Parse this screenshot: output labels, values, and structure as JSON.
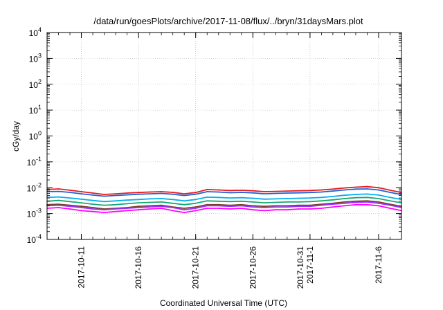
{
  "chart_data": {
    "type": "line",
    "title": "/data/run/goesPlots/archive/2017-11-08/flux/../bryn/31daysMars.plot",
    "xlabel": "Coordinated Universal Time (UTC)",
    "ylabel": "cGy/day",
    "yscale": "log",
    "ylim": [
      0.0001,
      10000
    ],
    "xlim": [
      "2017-10-08",
      "2017-11-08"
    ],
    "grid": true,
    "x_ticks": [
      {
        "date": "2017-10-11",
        "lines": [
          "2017-10-11"
        ]
      },
      {
        "date": "2017-10-16",
        "lines": [
          "2017-10-16"
        ]
      },
      {
        "date": "2017-10-21",
        "lines": [
          "2017-10-21"
        ]
      },
      {
        "date": "2017-10-26",
        "lines": [
          "2017-10-26"
        ]
      },
      {
        "date": "2017-10-31",
        "lines": [
          "2017-10-31",
          "2017-11-1"
        ]
      },
      {
        "date": "2017-11-06",
        "lines": [
          "2017-11-6"
        ]
      }
    ],
    "y_ticks": [
      {
        "value": 0.0001,
        "base": "10",
        "exp": "-4"
      },
      {
        "value": 0.001,
        "base": "10",
        "exp": "-3"
      },
      {
        "value": 0.01,
        "base": "10",
        "exp": "-2"
      },
      {
        "value": 0.1,
        "base": "10",
        "exp": "-1"
      },
      {
        "value": 1,
        "base": "10",
        "exp": "0"
      },
      {
        "value": 10,
        "base": "10",
        "exp": "1"
      },
      {
        "value": 100,
        "base": "10",
        "exp": "2"
      },
      {
        "value": 1000,
        "base": "10",
        "exp": "3"
      },
      {
        "value": 10000,
        "base": "10",
        "exp": "4"
      }
    ],
    "series": [
      {
        "color": "#e41a1c",
        "points": [
          [
            "2017-10-08",
            0.0085
          ],
          [
            "2017-10-09",
            0.009
          ],
          [
            "2017-10-10",
            0.008
          ],
          [
            "2017-10-11",
            0.007
          ],
          [
            "2017-10-12",
            0.0062
          ],
          [
            "2017-10-13",
            0.0055
          ],
          [
            "2017-10-14",
            0.0058
          ],
          [
            "2017-10-15",
            0.0062
          ],
          [
            "2017-10-16",
            0.0065
          ],
          [
            "2017-10-17",
            0.0068
          ],
          [
            "2017-10-18",
            0.007
          ],
          [
            "2017-10-19",
            0.0066
          ],
          [
            "2017-10-20",
            0.0058
          ],
          [
            "2017-10-21",
            0.0065
          ],
          [
            "2017-10-22",
            0.0085
          ],
          [
            "2017-10-23",
            0.0082
          ],
          [
            "2017-10-24",
            0.0078
          ],
          [
            "2017-10-25",
            0.008
          ],
          [
            "2017-10-26",
            0.0076
          ],
          [
            "2017-10-27",
            0.007
          ],
          [
            "2017-10-28",
            0.0072
          ],
          [
            "2017-10-29",
            0.0074
          ],
          [
            "2017-10-30",
            0.0076
          ],
          [
            "2017-10-31",
            0.0078
          ],
          [
            "2017-11-01",
            0.0082
          ],
          [
            "2017-11-02",
            0.0088
          ],
          [
            "2017-11-03",
            0.0098
          ],
          [
            "2017-11-04",
            0.0105
          ],
          [
            "2017-11-05",
            0.011
          ],
          [
            "2017-11-06",
            0.01
          ],
          [
            "2017-11-07",
            0.008
          ],
          [
            "2017-11-08",
            0.0065
          ]
        ]
      },
      {
        "color": "#1f5fd6",
        "points": [
          [
            "2017-10-08",
            0.007
          ],
          [
            "2017-10-09",
            0.0072
          ],
          [
            "2017-10-10",
            0.0066
          ],
          [
            "2017-10-11",
            0.0058
          ],
          [
            "2017-10-12",
            0.0052
          ],
          [
            "2017-10-13",
            0.0047
          ],
          [
            "2017-10-14",
            0.005
          ],
          [
            "2017-10-15",
            0.0053
          ],
          [
            "2017-10-16",
            0.0056
          ],
          [
            "2017-10-17",
            0.0058
          ],
          [
            "2017-10-18",
            0.006
          ],
          [
            "2017-10-19",
            0.0056
          ],
          [
            "2017-10-20",
            0.005
          ],
          [
            "2017-10-21",
            0.0056
          ],
          [
            "2017-10-22",
            0.007
          ],
          [
            "2017-10-23",
            0.0068
          ],
          [
            "2017-10-24",
            0.0064
          ],
          [
            "2017-10-25",
            0.0066
          ],
          [
            "2017-10-26",
            0.0063
          ],
          [
            "2017-10-27",
            0.0058
          ],
          [
            "2017-10-28",
            0.006
          ],
          [
            "2017-10-29",
            0.0062
          ],
          [
            "2017-10-30",
            0.0063
          ],
          [
            "2017-10-31",
            0.0065
          ],
          [
            "2017-11-01",
            0.0068
          ],
          [
            "2017-11-02",
            0.0074
          ],
          [
            "2017-11-03",
            0.0082
          ],
          [
            "2017-11-04",
            0.0088
          ],
          [
            "2017-11-05",
            0.009
          ],
          [
            "2017-11-06",
            0.0082
          ],
          [
            "2017-11-07",
            0.0066
          ],
          [
            "2017-11-08",
            0.0054
          ]
        ]
      },
      {
        "color": "#00b0f0",
        "points": [
          [
            "2017-10-08",
            0.0042
          ],
          [
            "2017-10-09",
            0.0044
          ],
          [
            "2017-10-10",
            0.004
          ],
          [
            "2017-10-11",
            0.0036
          ],
          [
            "2017-10-12",
            0.0032
          ],
          [
            "2017-10-13",
            0.0029
          ],
          [
            "2017-10-14",
            0.0031
          ],
          [
            "2017-10-15",
            0.0033
          ],
          [
            "2017-10-16",
            0.0035
          ],
          [
            "2017-10-17",
            0.0037
          ],
          [
            "2017-10-18",
            0.0038
          ],
          [
            "2017-10-19",
            0.0035
          ],
          [
            "2017-10-20",
            0.0031
          ],
          [
            "2017-10-21",
            0.0035
          ],
          [
            "2017-10-22",
            0.0043
          ],
          [
            "2017-10-23",
            0.0042
          ],
          [
            "2017-10-24",
            0.004
          ],
          [
            "2017-10-25",
            0.0041
          ],
          [
            "2017-10-26",
            0.0039
          ],
          [
            "2017-10-27",
            0.0036
          ],
          [
            "2017-10-28",
            0.0037
          ],
          [
            "2017-10-29",
            0.0038
          ],
          [
            "2017-10-30",
            0.0039
          ],
          [
            "2017-10-31",
            0.004
          ],
          [
            "2017-11-01",
            0.0042
          ],
          [
            "2017-11-02",
            0.0046
          ],
          [
            "2017-11-03",
            0.0051
          ],
          [
            "2017-11-04",
            0.0055
          ],
          [
            "2017-11-05",
            0.0057
          ],
          [
            "2017-11-06",
            0.0052
          ],
          [
            "2017-11-07",
            0.0042
          ],
          [
            "2017-11-08",
            0.0035
          ]
        ]
      },
      {
        "color": "#17a673",
        "points": [
          [
            "2017-10-08",
            0.003
          ],
          [
            "2017-10-09",
            0.0032
          ],
          [
            "2017-10-10",
            0.0029
          ],
          [
            "2017-10-11",
            0.0026
          ],
          [
            "2017-10-12",
            0.0023
          ],
          [
            "2017-10-13",
            0.0021
          ],
          [
            "2017-10-14",
            0.0022
          ],
          [
            "2017-10-15",
            0.0024
          ],
          [
            "2017-10-16",
            0.0026
          ],
          [
            "2017-10-17",
            0.0027
          ],
          [
            "2017-10-18",
            0.0028
          ],
          [
            "2017-10-19",
            0.0025
          ],
          [
            "2017-10-20",
            0.0022
          ],
          [
            "2017-10-21",
            0.0025
          ],
          [
            "2017-10-22",
            0.0031
          ],
          [
            "2017-10-23",
            0.003
          ],
          [
            "2017-10-24",
            0.0029
          ],
          [
            "2017-10-25",
            0.003
          ],
          [
            "2017-10-26",
            0.0028
          ],
          [
            "2017-10-27",
            0.0026
          ],
          [
            "2017-10-28",
            0.0027
          ],
          [
            "2017-10-29",
            0.0028
          ],
          [
            "2017-10-30",
            0.0028
          ],
          [
            "2017-10-31",
            0.0029
          ],
          [
            "2017-11-01",
            0.0031
          ],
          [
            "2017-11-02",
            0.0034
          ],
          [
            "2017-11-03",
            0.0038
          ],
          [
            "2017-11-04",
            0.0041
          ],
          [
            "2017-11-05",
            0.0042
          ],
          [
            "2017-11-06",
            0.0038
          ],
          [
            "2017-11-07",
            0.0031
          ],
          [
            "2017-11-08",
            0.0026
          ]
        ]
      },
      {
        "color": "#7a3e2c",
        "points": [
          [
            "2017-10-08",
            0.0022
          ],
          [
            "2017-10-09",
            0.0023
          ],
          [
            "2017-10-10",
            0.0021
          ],
          [
            "2017-10-11",
            0.0019
          ],
          [
            "2017-10-12",
            0.0017
          ],
          [
            "2017-10-13",
            0.0015
          ],
          [
            "2017-10-14",
            0.0016
          ],
          [
            "2017-10-15",
            0.0017
          ],
          [
            "2017-10-16",
            0.0019
          ],
          [
            "2017-10-17",
            0.002
          ],
          [
            "2017-10-18",
            0.0021
          ],
          [
            "2017-10-19",
            0.0018
          ],
          [
            "2017-10-20",
            0.0016
          ],
          [
            "2017-10-21",
            0.0018
          ],
          [
            "2017-10-22",
            0.0022
          ],
          [
            "2017-10-23",
            0.0022
          ],
          [
            "2017-10-24",
            0.0021
          ],
          [
            "2017-10-25",
            0.0022
          ],
          [
            "2017-10-26",
            0.002
          ],
          [
            "2017-10-27",
            0.0019
          ],
          [
            "2017-10-28",
            0.002
          ],
          [
            "2017-10-29",
            0.002
          ],
          [
            "2017-10-30",
            0.0021
          ],
          [
            "2017-10-31",
            0.0021
          ],
          [
            "2017-11-01",
            0.0023
          ],
          [
            "2017-11-02",
            0.0025
          ],
          [
            "2017-11-03",
            0.0028
          ],
          [
            "2017-11-04",
            0.003
          ],
          [
            "2017-11-05",
            0.0031
          ],
          [
            "2017-11-06",
            0.0028
          ],
          [
            "2017-11-07",
            0.0023
          ],
          [
            "2017-11-08",
            0.0019
          ]
        ]
      },
      {
        "color": "#9b30ff",
        "points": [
          [
            "2017-10-08",
            0.002
          ],
          [
            "2017-10-09",
            0.0021
          ],
          [
            "2017-10-10",
            0.0019
          ],
          [
            "2017-10-11",
            0.0017
          ],
          [
            "2017-10-12",
            0.0015
          ],
          [
            "2017-10-13",
            0.0014
          ],
          [
            "2017-10-14",
            0.0015
          ],
          [
            "2017-10-15",
            0.0016
          ],
          [
            "2017-10-16",
            0.0017
          ],
          [
            "2017-10-17",
            0.0018
          ],
          [
            "2017-10-18",
            0.0019
          ],
          [
            "2017-10-19",
            0.0017
          ],
          [
            "2017-10-20",
            0.0014
          ],
          [
            "2017-10-21",
            0.0016
          ],
          [
            "2017-10-22",
            0.002
          ],
          [
            "2017-10-23",
            0.002
          ],
          [
            "2017-10-24",
            0.0019
          ],
          [
            "2017-10-25",
            0.002
          ],
          [
            "2017-10-26",
            0.0018
          ],
          [
            "2017-10-27",
            0.0017
          ],
          [
            "2017-10-28",
            0.0018
          ],
          [
            "2017-10-29",
            0.0018
          ],
          [
            "2017-10-30",
            0.0019
          ],
          [
            "2017-10-31",
            0.0019
          ],
          [
            "2017-11-01",
            0.0021
          ],
          [
            "2017-11-02",
            0.0023
          ],
          [
            "2017-11-03",
            0.0025
          ],
          [
            "2017-11-04",
            0.0027
          ],
          [
            "2017-11-05",
            0.0028
          ],
          [
            "2017-11-06",
            0.0025
          ],
          [
            "2017-11-07",
            0.0021
          ],
          [
            "2017-11-08",
            0.0017
          ]
        ]
      },
      {
        "color": "#ff00ff",
        "points": [
          [
            "2017-10-08",
            0.0016
          ],
          [
            "2017-10-09",
            0.0017
          ],
          [
            "2017-10-10",
            0.0015
          ],
          [
            "2017-10-11",
            0.0013
          ],
          [
            "2017-10-12",
            0.0012
          ],
          [
            "2017-10-13",
            0.0011
          ],
          [
            "2017-10-14",
            0.0012
          ],
          [
            "2017-10-15",
            0.0013
          ],
          [
            "2017-10-16",
            0.0014
          ],
          [
            "2017-10-17",
            0.0015
          ],
          [
            "2017-10-18",
            0.0016
          ],
          [
            "2017-10-19",
            0.0013
          ],
          [
            "2017-10-20",
            0.0011
          ],
          [
            "2017-10-21",
            0.0013
          ],
          [
            "2017-10-22",
            0.0016
          ],
          [
            "2017-10-23",
            0.0016
          ],
          [
            "2017-10-24",
            0.0015
          ],
          [
            "2017-10-25",
            0.0016
          ],
          [
            "2017-10-26",
            0.0014
          ],
          [
            "2017-10-27",
            0.0013
          ],
          [
            "2017-10-28",
            0.0014
          ],
          [
            "2017-10-29",
            0.0014
          ],
          [
            "2017-10-30",
            0.0015
          ],
          [
            "2017-10-31",
            0.0015
          ],
          [
            "2017-11-01",
            0.0016
          ],
          [
            "2017-11-02",
            0.0018
          ],
          [
            "2017-11-03",
            0.002
          ],
          [
            "2017-11-04",
            0.0022
          ],
          [
            "2017-11-05",
            0.0022
          ],
          [
            "2017-11-06",
            0.002
          ],
          [
            "2017-11-07",
            0.0016
          ],
          [
            "2017-11-08",
            0.0013
          ]
        ]
      }
    ]
  }
}
